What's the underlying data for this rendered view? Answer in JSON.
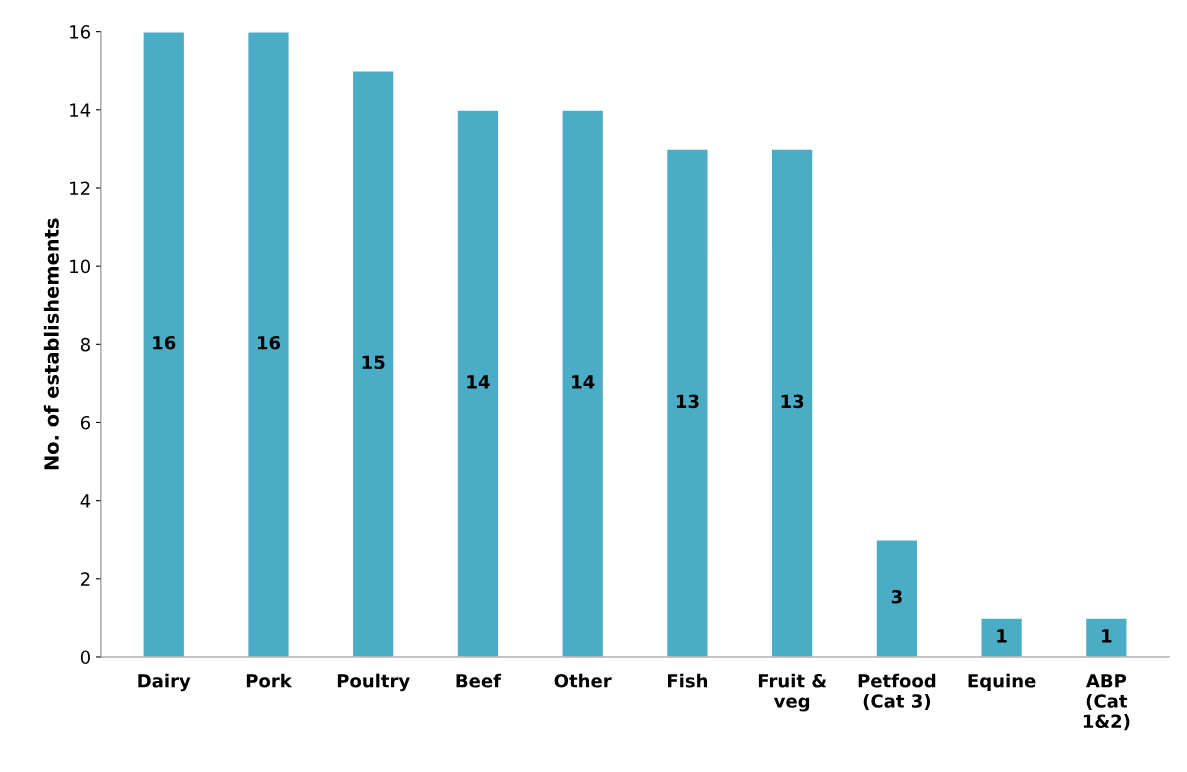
{
  "chart_data": {
    "type": "bar",
    "ylabel": "No. of establishements",
    "categories": [
      "Dairy",
      "Pork",
      "Poultry",
      "Beef",
      "Other",
      "Fish",
      "Fruit &\nveg",
      "Petfood\n(Cat 3)",
      "Equine",
      "ABP\n(Cat\n1&2)"
    ],
    "values": [
      16,
      16,
      15,
      14,
      14,
      13,
      13,
      3,
      1,
      1
    ],
    "color": "#4bacc6",
    "ylim": [
      0,
      16
    ],
    "yticks": [
      0,
      2,
      4,
      6,
      8,
      10,
      12,
      14,
      16
    ],
    "grid": false,
    "data_labels": true
  }
}
